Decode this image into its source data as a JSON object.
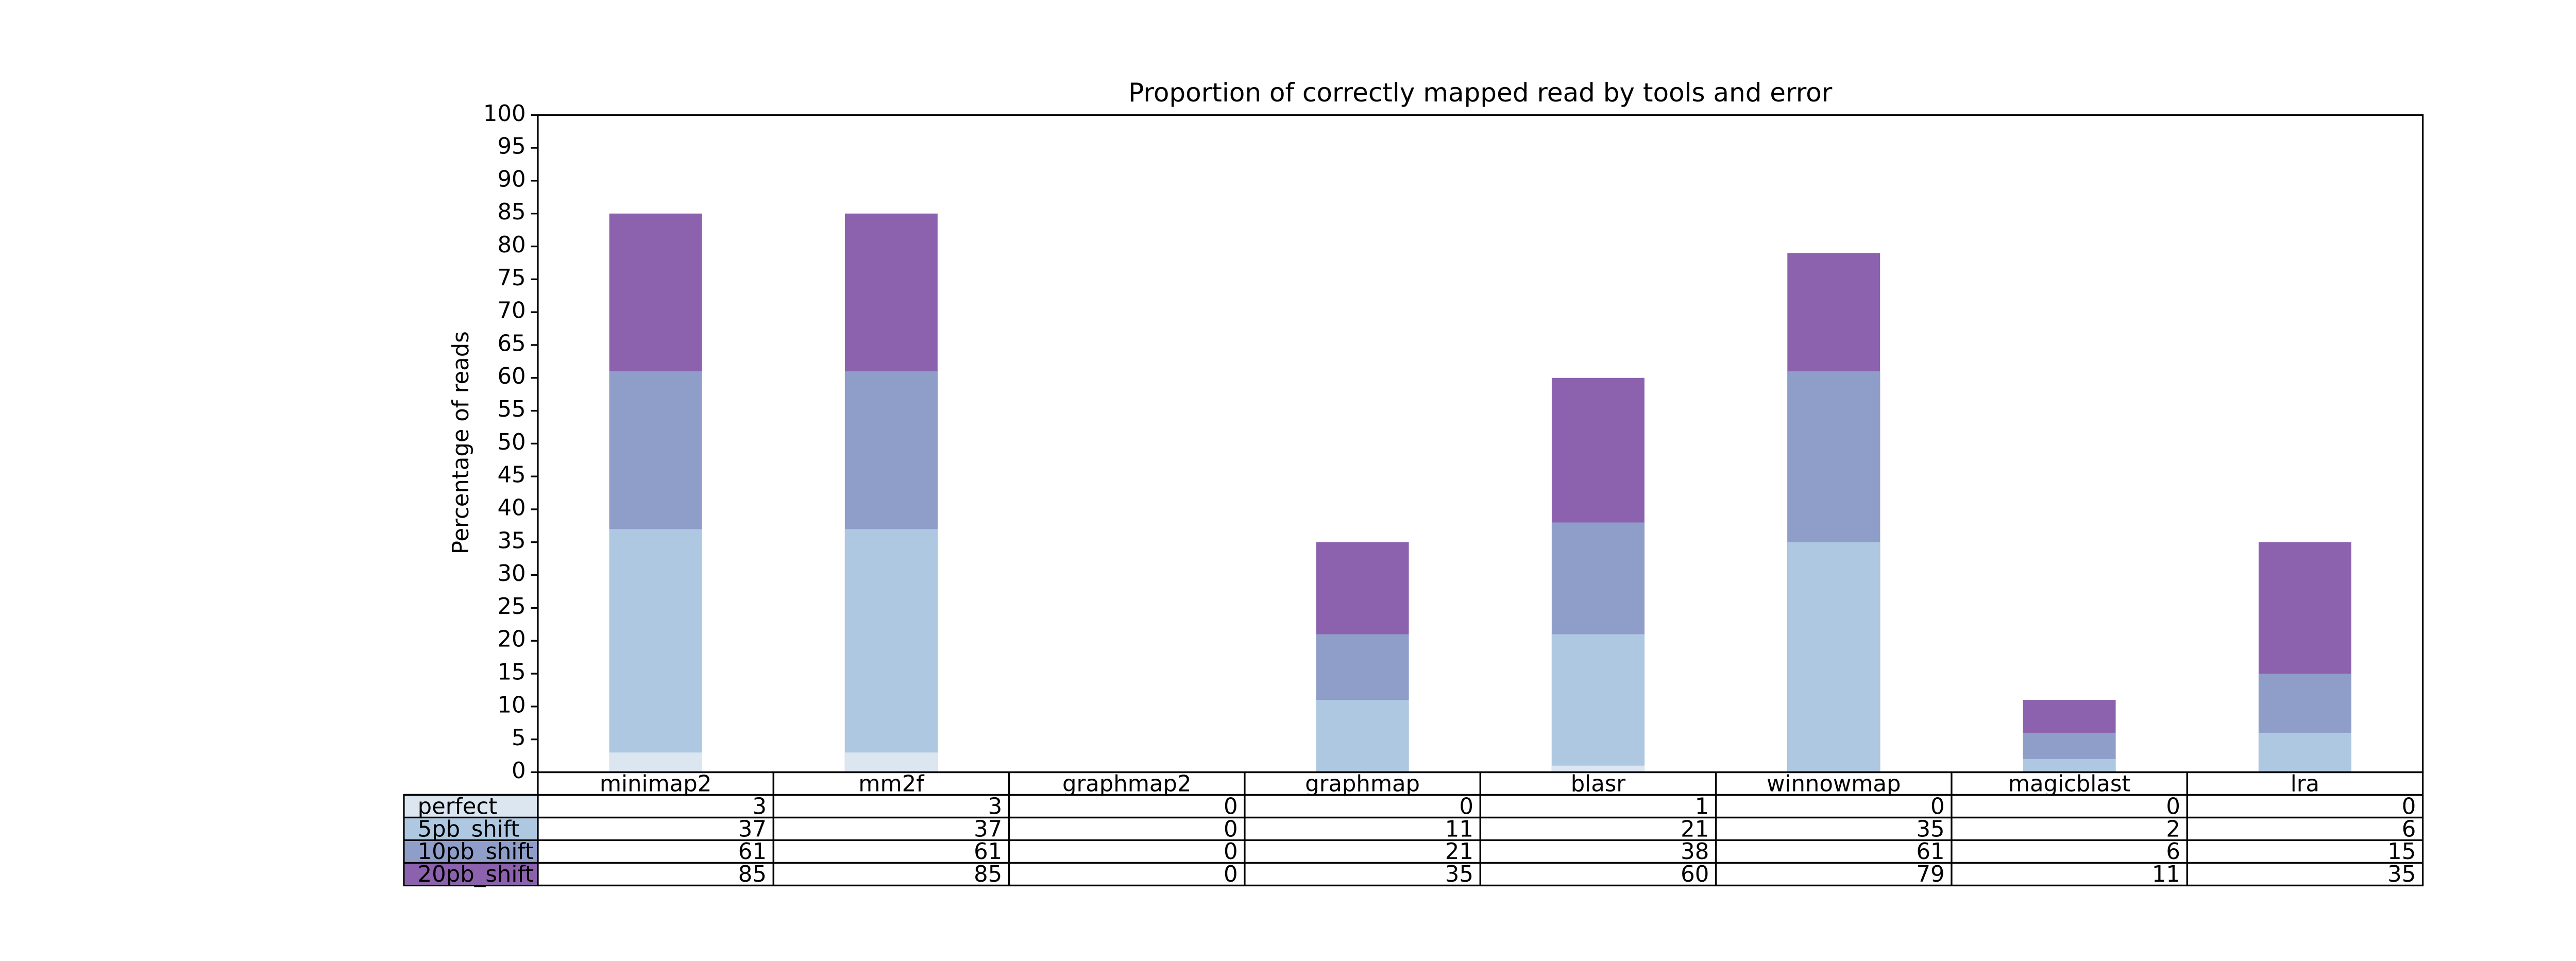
{
  "chart_data": {
    "type": "bar",
    "title": "Proportion of correctly mapped read by tools and error",
    "y_label": "Percentage of reads",
    "categories": [
      "minimap2",
      "mm2f",
      "graphmap2",
      "graphmap",
      "blasr",
      "winnowmap",
      "magicblast",
      "lra"
    ],
    "series": [
      {
        "name": "perfect",
        "color": "#dbe6f1",
        "values": [
          3,
          3,
          0,
          0,
          1,
          0,
          0,
          0
        ]
      },
      {
        "name": "5pb_shift",
        "color": "#aec8e1",
        "values": [
          37,
          37,
          0,
          11,
          21,
          35,
          2,
          6
        ]
      },
      {
        "name": "10pb_shift",
        "color": "#8f9dc9",
        "values": [
          61,
          61,
          0,
          21,
          38,
          61,
          6,
          15
        ]
      },
      {
        "name": "20pb_shift",
        "color": "#8c62af",
        "values": [
          85,
          85,
          0,
          35,
          60,
          79,
          11,
          35
        ]
      }
    ],
    "ylim": [
      0,
      100
    ],
    "yticks": [
      0,
      5,
      10,
      15,
      20,
      25,
      30,
      35,
      40,
      45,
      50,
      55,
      60,
      65,
      70,
      75,
      80,
      85,
      90,
      95,
      100
    ]
  }
}
